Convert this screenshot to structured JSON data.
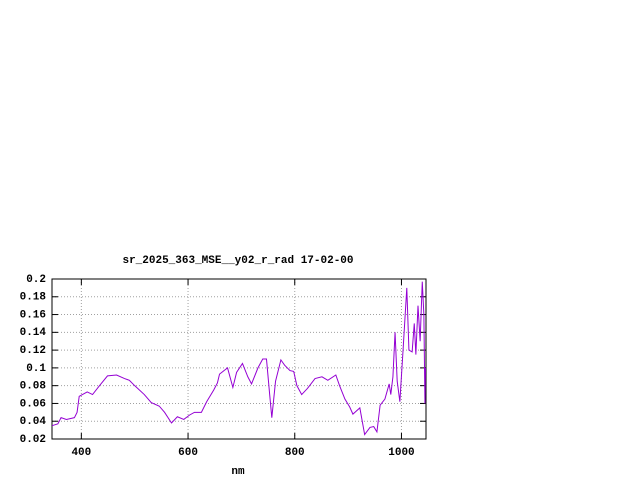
{
  "chart_data": {
    "type": "line",
    "title": "sr_2025_363_MSE__y02_r_rad 17-02-00",
    "x_label": "nm",
    "x": [
      345,
      356,
      362,
      372,
      387,
      392,
      396,
      411,
      421,
      434,
      449,
      466,
      481,
      490,
      500,
      518,
      531,
      546,
      556,
      569,
      580,
      592,
      603,
      612,
      625,
      635,
      648,
      655,
      659,
      674,
      684,
      691,
      702,
      712,
      719,
      731,
      740,
      747,
      753,
      757,
      764,
      774,
      781,
      791,
      798,
      804,
      813,
      824,
      838,
      851,
      862,
      877,
      884,
      894,
      903,
      909,
      922,
      931,
      941,
      948,
      954,
      960,
      969,
      977,
      980,
      984,
      988,
      992,
      997,
      1003,
      1007,
      1010,
      1014,
      1020,
      1024,
      1027,
      1031,
      1035,
      1039,
      1042,
      1044,
      1045
    ],
    "series": [
      {
        "color": "#9400d3",
        "values": [
          0.035,
          0.037,
          0.044,
          0.042,
          0.044,
          0.05,
          0.068,
          0.073,
          0.07,
          0.08,
          0.091,
          0.092,
          0.088,
          0.086,
          0.08,
          0.07,
          0.061,
          0.057,
          0.05,
          0.038,
          0.045,
          0.042,
          0.047,
          0.05,
          0.05,
          0.062,
          0.075,
          0.083,
          0.093,
          0.1,
          0.078,
          0.095,
          0.105,
          0.09,
          0.082,
          0.1,
          0.11,
          0.11,
          0.07,
          0.044,
          0.085,
          0.109,
          0.103,
          0.097,
          0.096,
          0.08,
          0.07,
          0.077,
          0.088,
          0.09,
          0.086,
          0.092,
          0.08,
          0.065,
          0.056,
          0.048,
          0.055,
          0.025,
          0.033,
          0.034,
          0.028,
          0.058,
          0.065,
          0.082,
          0.07,
          0.09,
          0.14,
          0.085,
          0.062,
          0.12,
          0.16,
          0.19,
          0.12,
          0.118,
          0.15,
          0.115,
          0.17,
          0.13,
          0.197,
          0.16,
          0.06,
          0.1
        ]
      }
    ],
    "xlim": [
      345,
      1046
    ],
    "xticks": [
      400,
      600,
      800,
      1000
    ],
    "ylim": [
      0.02,
      0.2
    ],
    "yticks": [
      0.02,
      0.04,
      0.06,
      0.08,
      0.1,
      0.12,
      0.14,
      0.16,
      0.18,
      0.2
    ],
    "grid": true
  }
}
